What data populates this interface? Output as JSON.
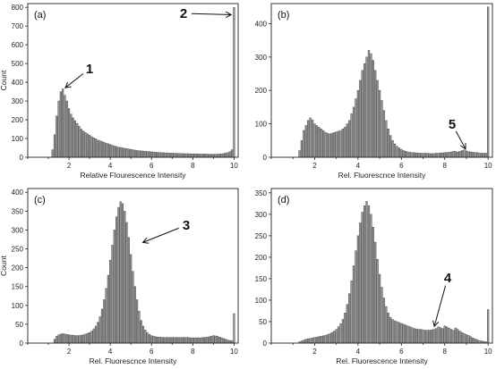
{
  "chart_data": [
    {
      "type": "bar",
      "panel_label": "(a)",
      "xlabel": "Relative Flourescence Intensity",
      "ylabel": "Count",
      "xlim": [
        0,
        10.2
      ],
      "ylim": [
        0,
        820
      ],
      "xticks": [
        2,
        4,
        6,
        8,
        10
      ],
      "yticks": [
        0,
        100,
        200,
        300,
        400,
        500,
        600,
        700,
        800
      ],
      "x": [
        1.2,
        1.3,
        1.4,
        1.5,
        1.6,
        1.7,
        1.8,
        1.9,
        2.0,
        2.1,
        2.2,
        2.3,
        2.4,
        2.5,
        2.6,
        2.7,
        2.8,
        2.9,
        3.0,
        3.1,
        3.2,
        3.3,
        3.4,
        3.5,
        3.6,
        3.7,
        3.8,
        3.9,
        4.0,
        4.1,
        4.2,
        4.3,
        4.4,
        4.5,
        4.6,
        4.7,
        4.8,
        4.9,
        5.0,
        5.1,
        5.2,
        5.3,
        5.4,
        5.5,
        5.6,
        5.7,
        5.8,
        5.9,
        6.0,
        6.1,
        6.2,
        6.3,
        6.4,
        6.5,
        6.6,
        6.7,
        6.8,
        6.9,
        7.0,
        7.1,
        7.2,
        7.3,
        7.4,
        7.5,
        7.6,
        7.7,
        7.8,
        7.9,
        8.0,
        8.1,
        8.2,
        8.3,
        8.4,
        8.5,
        8.6,
        8.7,
        8.8,
        8.9,
        9.0,
        9.1,
        9.2,
        9.3,
        9.4,
        9.5,
        9.6,
        9.7,
        9.8,
        9.9,
        10.0
      ],
      "values": [
        40,
        120,
        220,
        300,
        350,
        365,
        330,
        300,
        260,
        230,
        210,
        195,
        180,
        165,
        150,
        140,
        132,
        125,
        118,
        110,
        104,
        98,
        92,
        88,
        84,
        80,
        75,
        72,
        68,
        64,
        60,
        57,
        54,
        52,
        50,
        48,
        46,
        44,
        42,
        40,
        38,
        36,
        35,
        34,
        33,
        32,
        31,
        30,
        29,
        28,
        27,
        26,
        25,
        24,
        24,
        23,
        23,
        22,
        22,
        21,
        21,
        20,
        20,
        20,
        19,
        19,
        19,
        18,
        18,
        18,
        18,
        17,
        17,
        17,
        17,
        17,
        16,
        16,
        16,
        16,
        16,
        17,
        18,
        20,
        22,
        25,
        30,
        40,
        800
      ],
      "annotations": [
        {
          "label": "1",
          "x": 1.75,
          "y": 365
        },
        {
          "label": "2",
          "x": 9.95,
          "y": 760
        }
      ]
    },
    {
      "type": "bar",
      "panel_label": "(b)",
      "xlabel": "Rel. Fluorescnce Intensity",
      "ylabel": "",
      "xlim": [
        0,
        10.2
      ],
      "ylim": [
        0,
        460
      ],
      "xticks": [
        2,
        4,
        6,
        8,
        10
      ],
      "yticks": [
        0,
        100,
        200,
        300,
        400
      ],
      "x": [
        1.3,
        1.4,
        1.5,
        1.6,
        1.7,
        1.8,
        1.9,
        2.0,
        2.1,
        2.2,
        2.3,
        2.4,
        2.5,
        2.6,
        2.7,
        2.8,
        2.9,
        3.0,
        3.1,
        3.2,
        3.3,
        3.4,
        3.5,
        3.6,
        3.7,
        3.8,
        3.9,
        4.0,
        4.1,
        4.2,
        4.3,
        4.4,
        4.5,
        4.6,
        4.7,
        4.8,
        4.9,
        5.0,
        5.1,
        5.2,
        5.3,
        5.4,
        5.5,
        5.6,
        5.7,
        5.8,
        5.9,
        6.0,
        6.1,
        6.2,
        6.3,
        6.4,
        6.5,
        6.6,
        6.7,
        6.8,
        6.9,
        7.0,
        7.1,
        7.2,
        7.3,
        7.4,
        7.5,
        7.6,
        7.7,
        7.8,
        7.9,
        8.0,
        8.1,
        8.2,
        8.3,
        8.4,
        8.5,
        8.6,
        8.7,
        8.8,
        8.9,
        9.0,
        9.1,
        9.2,
        9.3,
        9.4,
        9.5,
        9.6,
        9.7,
        9.8,
        9.9,
        10.0
      ],
      "values": [
        20,
        50,
        80,
        95,
        110,
        118,
        112,
        100,
        95,
        90,
        85,
        80,
        75,
        72,
        70,
        72,
        74,
        76,
        78,
        80,
        85,
        90,
        100,
        110,
        130,
        150,
        175,
        200,
        230,
        260,
        280,
        300,
        320,
        310,
        290,
        260,
        230,
        200,
        170,
        140,
        110,
        85,
        65,
        50,
        40,
        33,
        28,
        24,
        20,
        18,
        16,
        15,
        14,
        14,
        13,
        13,
        12,
        12,
        12,
        12,
        11,
        11,
        11,
        12,
        12,
        13,
        13,
        14,
        14,
        15,
        16,
        18,
        17,
        16,
        18,
        20,
        22,
        19,
        17,
        16,
        15,
        14,
        14,
        13,
        12,
        12,
        12,
        450
      ],
      "annotations": [
        {
          "label": "5",
          "x": 9.0,
          "y": 20
        }
      ]
    },
    {
      "type": "bar",
      "panel_label": "(c)",
      "xlabel": "Rel. Fluorescnce Intensity",
      "ylabel": "Count",
      "xlim": [
        0,
        10.2
      ],
      "ylim": [
        0,
        410
      ],
      "xticks": [
        2,
        4,
        6,
        8,
        10
      ],
      "yticks": [
        0,
        50,
        100,
        150,
        200,
        250,
        300,
        350,
        400
      ],
      "x": [
        1.3,
        1.4,
        1.5,
        1.6,
        1.7,
        1.8,
        1.9,
        2.0,
        2.1,
        2.2,
        2.3,
        2.4,
        2.5,
        2.6,
        2.7,
        2.8,
        2.9,
        3.0,
        3.1,
        3.2,
        3.3,
        3.4,
        3.5,
        3.6,
        3.7,
        3.8,
        3.9,
        4.0,
        4.1,
        4.2,
        4.3,
        4.4,
        4.5,
        4.6,
        4.7,
        4.8,
        4.9,
        5.0,
        5.1,
        5.2,
        5.3,
        5.4,
        5.5,
        5.6,
        5.7,
        5.8,
        5.9,
        6.0,
        6.1,
        6.2,
        6.3,
        6.4,
        6.5,
        6.6,
        6.7,
        6.8,
        6.9,
        7.0,
        7.1,
        7.2,
        7.3,
        7.4,
        7.5,
        7.6,
        7.7,
        7.8,
        7.9,
        8.0,
        8.1,
        8.2,
        8.3,
        8.4,
        8.5,
        8.6,
        8.7,
        8.8,
        8.9,
        9.0,
        9.1,
        9.2,
        9.3,
        9.4,
        9.5,
        9.6,
        9.7,
        9.8,
        9.9,
        10.0
      ],
      "values": [
        10,
        18,
        22,
        24,
        25,
        24,
        23,
        22,
        21,
        21,
        20,
        20,
        20,
        21,
        22,
        24,
        26,
        28,
        32,
        38,
        45,
        55,
        70,
        90,
        115,
        145,
        180,
        220,
        260,
        300,
        335,
        360,
        375,
        370,
        350,
        320,
        280,
        235,
        190,
        150,
        115,
        85,
        60,
        45,
        35,
        28,
        23,
        20,
        18,
        17,
        16,
        16,
        15,
        15,
        15,
        15,
        15,
        15,
        15,
        15,
        15,
        15,
        15,
        15,
        15,
        15,
        14,
        14,
        14,
        14,
        14,
        14,
        15,
        15,
        16,
        17,
        18,
        20,
        19,
        18,
        16,
        14,
        12,
        10,
        8,
        7,
        6,
        78
      ],
      "annotations": [
        {
          "label": "3",
          "x": 5.5,
          "y": 265
        }
      ]
    },
    {
      "type": "bar",
      "panel_label": "(d)",
      "xlabel": "Rel. Fluorescence Intensity",
      "ylabel": "",
      "xlim": [
        0,
        10.2
      ],
      "ylim": [
        0,
        360
      ],
      "xticks": [
        2,
        4,
        6,
        8,
        10
      ],
      "yticks": [
        0,
        50,
        100,
        150,
        200,
        250,
        300,
        350
      ],
      "x": [
        1.3,
        1.4,
        1.5,
        1.6,
        1.7,
        1.8,
        1.9,
        2.0,
        2.1,
        2.2,
        2.3,
        2.4,
        2.5,
        2.6,
        2.7,
        2.8,
        2.9,
        3.0,
        3.1,
        3.2,
        3.3,
        3.4,
        3.5,
        3.6,
        3.7,
        3.8,
        3.9,
        4.0,
        4.1,
        4.2,
        4.3,
        4.4,
        4.5,
        4.6,
        4.7,
        4.8,
        4.9,
        5.0,
        5.1,
        5.2,
        5.3,
        5.4,
        5.5,
        5.6,
        5.7,
        5.8,
        5.9,
        6.0,
        6.1,
        6.2,
        6.3,
        6.4,
        6.5,
        6.6,
        6.7,
        6.8,
        6.9,
        7.0,
        7.1,
        7.2,
        7.3,
        7.4,
        7.5,
        7.6,
        7.7,
        7.8,
        7.9,
        8.0,
        8.1,
        8.2,
        8.3,
        8.4,
        8.5,
        8.6,
        8.7,
        8.8,
        8.9,
        9.0,
        9.1,
        9.2,
        9.3,
        9.4,
        9.5,
        9.6,
        9.7,
        9.8,
        9.9,
        10.0
      ],
      "values": [
        3,
        5,
        7,
        9,
        10,
        11,
        12,
        13,
        14,
        15,
        16,
        17,
        18,
        20,
        22,
        25,
        28,
        32,
        38,
        45,
        55,
        70,
        90,
        115,
        145,
        180,
        215,
        250,
        280,
        305,
        320,
        330,
        320,
        300,
        270,
        235,
        195,
        160,
        130,
        105,
        85,
        70,
        60,
        55,
        52,
        50,
        48,
        46,
        44,
        42,
        40,
        38,
        36,
        34,
        33,
        32,
        32,
        31,
        30,
        30,
        30,
        31,
        32,
        34,
        38,
        36,
        34,
        40,
        38,
        35,
        32,
        30,
        35,
        32,
        28,
        25,
        22,
        20,
        18,
        15,
        12,
        10,
        8,
        6,
        5,
        4,
        3,
        78
      ],
      "annotations": [
        {
          "label": "4",
          "x": 7.5,
          "y": 35
        }
      ]
    }
  ]
}
